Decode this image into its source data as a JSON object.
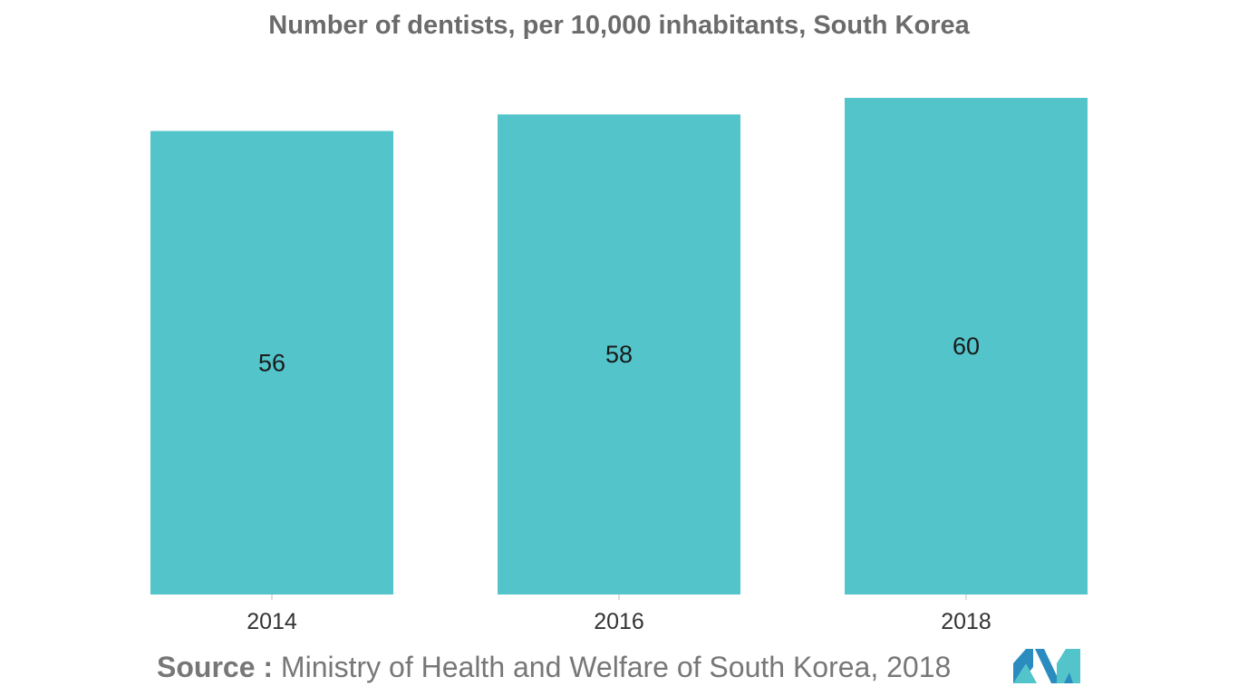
{
  "chart_data": {
    "type": "bar",
    "title": "Number of dentists, per 10,000 inhabitants, South Korea",
    "categories": [
      "2014",
      "2016",
      "2018"
    ],
    "values": [
      56,
      58,
      60
    ],
    "data_labels": [
      "56",
      "58",
      "60"
    ],
    "ylim": [
      0,
      60
    ],
    "grid": false,
    "legend": "none",
    "bar_color": "#52c4ca"
  },
  "source": {
    "label": "Source :",
    "text": " Ministry of Health and Welfare of South Korea, 2018"
  },
  "logo": {
    "icon": "mordor-intelligence-logo-icon",
    "colors": [
      "#2a8bbf",
      "#52c4ca"
    ]
  }
}
